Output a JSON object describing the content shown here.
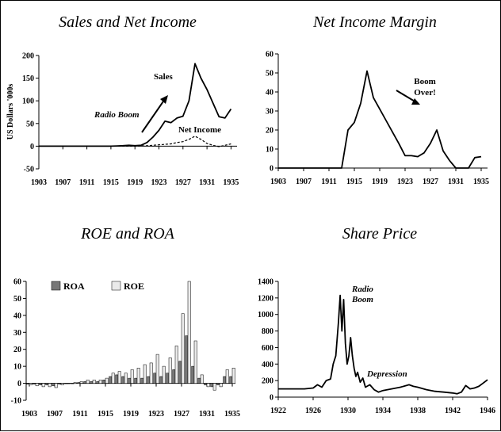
{
  "chart_data": [
    {
      "id": "sales",
      "type": "line",
      "title": "Sales and Net Income",
      "ylabel": "US Dollars '000s",
      "ylim": [
        -50,
        200
      ],
      "yticks": [
        -50,
        0,
        50,
        100,
        150,
        200
      ],
      "xlim": [
        1903,
        1936
      ],
      "xticks": [
        1903,
        1907,
        1911,
        1915,
        1919,
        1923,
        1927,
        1931,
        1935
      ],
      "annotations": [
        "Sales",
        "Radio Boom",
        "Net Income"
      ],
      "series": [
        {
          "name": "Sales",
          "style": "solid",
          "x": [
            1903,
            1905,
            1907,
            1909,
            1911,
            1913,
            1915,
            1916,
            1917,
            1918,
            1919,
            1920,
            1921,
            1922,
            1923,
            1924,
            1925,
            1926,
            1927,
            1928,
            1929,
            1930,
            1931,
            1932,
            1933,
            1934,
            1935
          ],
          "y": [
            0,
            0,
            0,
            0,
            0,
            0,
            0,
            0.5,
            1,
            2,
            1,
            2,
            8,
            20,
            35,
            55,
            52,
            62,
            66,
            100,
            182,
            150,
            125,
            95,
            65,
            62,
            82
          ]
        },
        {
          "name": "Net Income",
          "style": "dashed",
          "x": [
            1903,
            1915,
            1919,
            1921,
            1923,
            1925,
            1926,
            1927,
            1928,
            1929,
            1930,
            1931,
            1932,
            1933,
            1934,
            1935
          ],
          "y": [
            0,
            0,
            0,
            1,
            3,
            5,
            8,
            10,
            15,
            22,
            15,
            6,
            2,
            -1,
            2,
            5
          ]
        }
      ]
    },
    {
      "id": "margin",
      "type": "line",
      "title": "Net Income Margin",
      "ylim": [
        0,
        60
      ],
      "yticks": [
        0,
        10,
        20,
        30,
        40,
        50,
        60
      ],
      "xlim": [
        1903,
        1936
      ],
      "xticks": [
        1903,
        1907,
        1911,
        1915,
        1919,
        1923,
        1927,
        1931,
        1935
      ],
      "annotations": [
        "Boom",
        "Over!"
      ],
      "series": [
        {
          "name": "Net Income Margin",
          "style": "solid",
          "x": [
            1903,
            1913,
            1914,
            1915,
            1916,
            1917,
            1918,
            1919,
            1920,
            1921,
            1922,
            1923,
            1924,
            1925,
            1926,
            1927,
            1928,
            1929,
            1930,
            1931,
            1932,
            1933,
            1934,
            1935
          ],
          "y": [
            0,
            0,
            20,
            24,
            34,
            51,
            37,
            31,
            25,
            19,
            13,
            6.5,
            6.5,
            6,
            8,
            13,
            20,
            9,
            4,
            0,
            0,
            0,
            5.5,
            6
          ]
        }
      ]
    },
    {
      "id": "roe",
      "type": "bar",
      "title": "ROE and ROA",
      "ylim": [
        -10,
        60
      ],
      "yticks": [
        -10,
        0,
        10,
        20,
        30,
        40,
        50,
        60
      ],
      "xlim": [
        1902.5,
        1935.5
      ],
      "xticks": [
        1903,
        1907,
        1911,
        1915,
        1919,
        1923,
        1927,
        1931,
        1935
      ],
      "legend": [
        "ROA",
        "ROE"
      ],
      "categories": [
        1903,
        1904,
        1905,
        1906,
        1907,
        1908,
        1909,
        1910,
        1911,
        1912,
        1913,
        1914,
        1915,
        1916,
        1917,
        1918,
        1919,
        1920,
        1921,
        1922,
        1923,
        1924,
        1925,
        1926,
        1927,
        1928,
        1929,
        1930,
        1931,
        1932,
        1933,
        1934,
        1935
      ],
      "series": [
        {
          "name": "ROA",
          "color": "#777777",
          "values": [
            -0.5,
            -0.5,
            -1,
            -1,
            -1.5,
            -0.5,
            0,
            0,
            0.5,
            1,
            1,
            1,
            2,
            4,
            5,
            4,
            3,
            3,
            3,
            4,
            6,
            4,
            6,
            8,
            13,
            28,
            10,
            3,
            -1,
            -2,
            -1,
            4,
            4
          ]
        },
        {
          "name": "ROE",
          "color": "#eaeaea",
          "values": [
            -1,
            -1.5,
            -2,
            -2,
            -2.5,
            -1,
            0,
            0.5,
            1,
            2,
            2,
            2,
            3,
            6,
            7,
            6,
            8,
            9,
            11,
            12,
            17,
            10,
            15,
            22,
            41,
            60,
            25,
            5,
            -2,
            -4,
            -2,
            8,
            9
          ]
        }
      ]
    },
    {
      "id": "price",
      "type": "line",
      "title": "Share Price",
      "ylim": [
        0,
        1400
      ],
      "yticks": [
        0,
        200,
        400,
        600,
        800,
        1000,
        1200,
        1400
      ],
      "xlim": [
        1922,
        1946
      ],
      "xticks": [
        1922,
        1926,
        1930,
        1934,
        1938,
        1942,
        1946
      ],
      "annotations": [
        "Radio",
        "Boom",
        "Depression"
      ],
      "series": [
        {
          "name": "Share Price",
          "style": "solid",
          "x": [
            1922,
            1925,
            1926,
            1926.5,
            1927,
            1927.5,
            1928,
            1928.3,
            1928.6,
            1928.9,
            1929.1,
            1929.3,
            1929.5,
            1929.7,
            1929.9,
            1930.1,
            1930.3,
            1930.5,
            1930.7,
            1930.9,
            1931.1,
            1931.4,
            1931.7,
            1932,
            1932.5,
            1933,
            1933.5,
            1934,
            1935,
            1936,
            1937,
            1937.5,
            1938,
            1939,
            1940,
            1941,
            1942,
            1942.5,
            1943,
            1943.5,
            1944,
            1944.5,
            1945,
            1945.5,
            1946
          ],
          "y": [
            100,
            100,
            110,
            150,
            120,
            200,
            220,
            400,
            500,
            900,
            1230,
            800,
            1180,
            650,
            400,
            500,
            720,
            500,
            350,
            250,
            300,
            180,
            230,
            120,
            150,
            90,
            60,
            80,
            100,
            120,
            150,
            130,
            120,
            90,
            70,
            60,
            50,
            40,
            60,
            140,
            100,
            110,
            130,
            170,
            210
          ]
        }
      ]
    }
  ]
}
